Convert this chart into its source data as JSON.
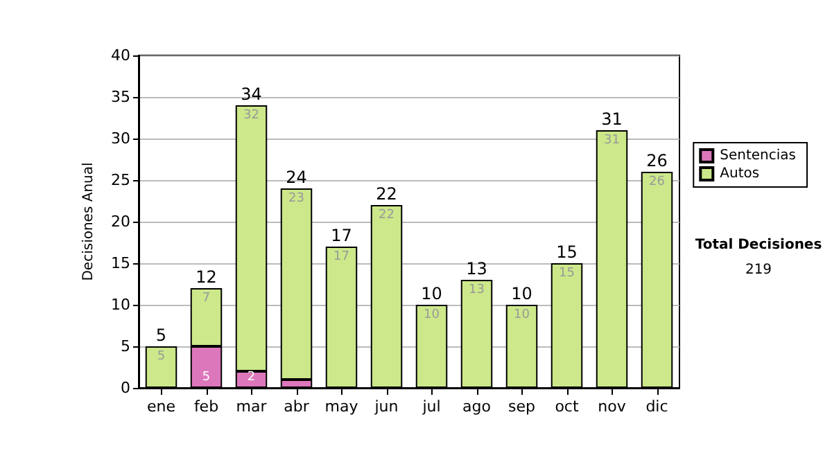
{
  "chart_data": {
    "type": "bar",
    "stacked": true,
    "ylabel": "Decisiones Anual",
    "categories": [
      "ene",
      "feb",
      "mar",
      "abr",
      "may",
      "jun",
      "jul",
      "ago",
      "sep",
      "oct",
      "nov",
      "dic"
    ],
    "series": [
      {
        "name": "Sentencias",
        "color": "#dd77bb",
        "values": [
          0,
          5,
          2,
          1,
          0,
          0,
          0,
          0,
          0,
          0,
          0,
          0
        ],
        "value_labels": [
          null,
          "5",
          "2",
          null,
          null,
          null,
          null,
          null,
          null,
          null,
          null,
          null
        ]
      },
      {
        "name": "Autos",
        "color": "#cce88a",
        "values": [
          5,
          7,
          32,
          23,
          17,
          22,
          10,
          13,
          10,
          15,
          31,
          26
        ],
        "value_labels": [
          "5",
          "7",
          "32",
          "23",
          "17",
          "22",
          "10",
          "13",
          "10",
          "15",
          "31",
          "26"
        ]
      }
    ],
    "totals": [
      "5",
      "12",
      "34",
      "24",
      "17",
      "22",
      "10",
      "13",
      "10",
      "15",
      "31",
      "26"
    ],
    "ylim": [
      0,
      40
    ],
    "yticks": [
      0,
      5,
      10,
      15,
      20,
      25,
      30,
      35,
      40
    ],
    "grid": "y",
    "legend": "right",
    "annotations": [
      "Total Decisiones",
      "219"
    ]
  }
}
